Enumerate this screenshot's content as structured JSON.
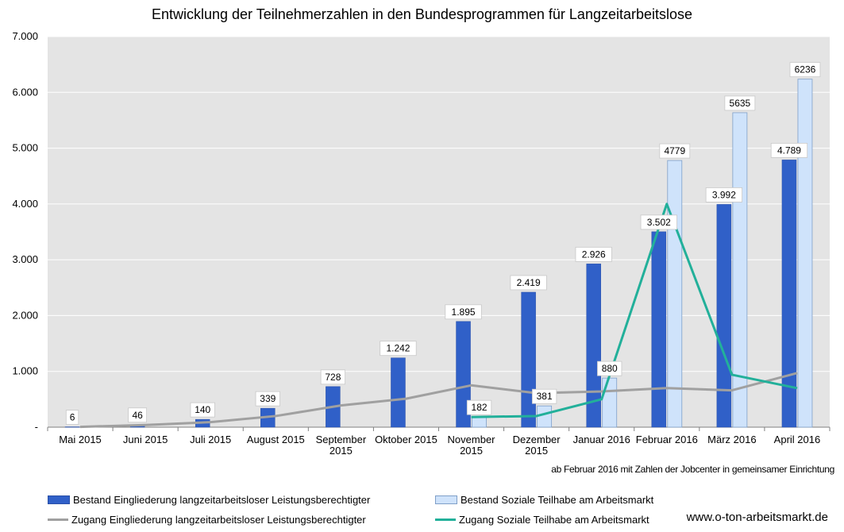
{
  "chart_data": {
    "type": "bar+line",
    "title": "Entwicklung der Teilnehmerzahlen in den Bundesprogrammen für Langzeitarbeitslose",
    "categories": [
      "Mai 2015",
      "Juni 2015",
      "Juli 2015",
      "August 2015",
      "September 2015",
      "Oktober 2015",
      "November 2015",
      "Dezember 2015",
      "Januar 2016",
      "Februar 2016",
      "März 2016",
      "April 2016"
    ],
    "category_lines": [
      [
        "Mai 2015"
      ],
      [
        "Juni 2015"
      ],
      [
        "Juli 2015"
      ],
      [
        "August 2015"
      ],
      [
        "September",
        "2015"
      ],
      [
        "Oktober 2015"
      ],
      [
        "November",
        "2015"
      ],
      [
        "Dezember",
        "2015"
      ],
      [
        "Januar 2016"
      ],
      [
        "Februar 2016"
      ],
      [
        "März 2016"
      ],
      [
        "April 2016"
      ]
    ],
    "ylim": [
      0,
      7000
    ],
    "yticks": [
      0,
      1000,
      2000,
      3000,
      4000,
      5000,
      6000,
      7000
    ],
    "ytick_labels": [
      "-",
      "1.000",
      "2.000",
      "3.000",
      "4.000",
      "5.000",
      "6.000",
      "7.000"
    ],
    "grid": true,
    "bar_series": [
      {
        "name": "Bestand Eingliederung langzeitarbeitsloser Leistungsberechtigter",
        "color": "#3060c8",
        "values": [
          6,
          46,
          140,
          339,
          728,
          1242,
          1895,
          2419,
          2926,
          3502,
          3992,
          4789
        ],
        "labels": [
          "6",
          "46",
          "140",
          "339",
          "728",
          "1.242",
          "1.895",
          "2.419",
          "2.926",
          "3.502",
          "3.992",
          "4.789"
        ]
      },
      {
        "name": "Bestand Soziale Teilhabe am Arbeitsmarkt",
        "color": "#cfe3fb",
        "values": [
          null,
          null,
          null,
          null,
          null,
          null,
          182,
          381,
          880,
          4779,
          5635,
          6236
        ],
        "labels": [
          null,
          null,
          null,
          null,
          null,
          null,
          "182",
          "381",
          "880",
          "4779",
          "5635",
          "6236"
        ]
      }
    ],
    "line_series": [
      {
        "name": "Zugang Eingliederung langzeitarbeitsloser Leistungsberechtigter",
        "color": "#a0a0a0",
        "values": [
          6,
          40,
          90,
          200,
          390,
          510,
          750,
          610,
          640,
          700,
          660,
          970
        ]
      },
      {
        "name": "Zugang Soziale Teilhabe am Arbeitsmarkt",
        "color": "#22b09a",
        "values": [
          null,
          null,
          null,
          null,
          null,
          null,
          182,
          200,
          500,
          4000,
          940,
          700
        ]
      }
    ],
    "footnote": "ab Februar 2016 mit Zahlen der Jobcenter in gemeinsamer Einrichtung",
    "legend_position": "bottom"
  },
  "website": "www.o-ton-arbeitsmarkt.de"
}
